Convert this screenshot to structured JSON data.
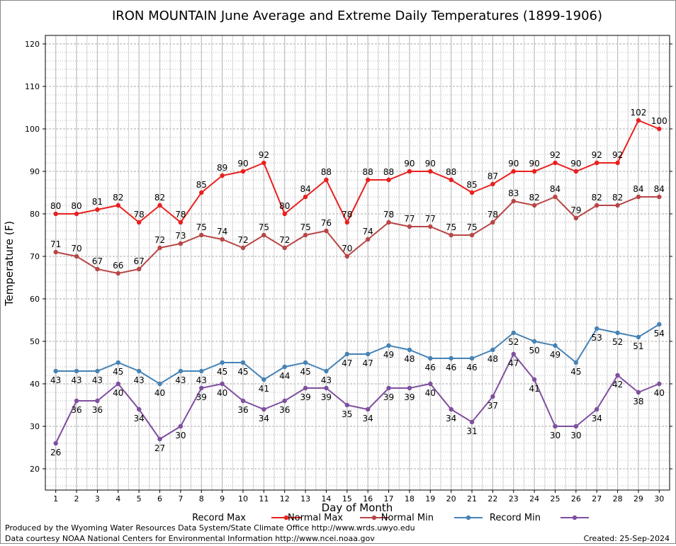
{
  "chart_data": {
    "type": "line",
    "title": "IRON MOUNTAIN June Average and Extreme Daily Temperatures (1899-1906)",
    "xlabel": "Day of Month",
    "ylabel": "Temperature (F)",
    "xlim": [
      0.5,
      30.5
    ],
    "ylim": [
      15,
      122
    ],
    "y_ticks": [
      20,
      30,
      40,
      50,
      60,
      70,
      80,
      90,
      100,
      110,
      120
    ],
    "x": [
      1,
      2,
      3,
      4,
      5,
      6,
      7,
      8,
      9,
      10,
      11,
      12,
      13,
      14,
      15,
      16,
      17,
      18,
      19,
      20,
      21,
      22,
      23,
      24,
      25,
      26,
      27,
      28,
      29,
      30
    ],
    "grid": true,
    "legend": "bottom",
    "series": [
      {
        "name": "Record Max",
        "color": "#e8201e",
        "label_pos": "above",
        "values": [
          80,
          80,
          81,
          82,
          78,
          82,
          78,
          85,
          89,
          90,
          92,
          80,
          84,
          88,
          78,
          88,
          88,
          90,
          90,
          88,
          85,
          87,
          90,
          90,
          92,
          90,
          92,
          92,
          102,
          100
        ]
      },
      {
        "name": "Normal Max",
        "color": "#b84646",
        "label_pos": "above",
        "values": [
          71,
          70,
          67,
          66,
          67,
          72,
          73,
          75,
          74,
          72,
          75,
          72,
          75,
          76,
          70,
          74,
          78,
          77,
          77,
          75,
          75,
          78,
          83,
          82,
          84,
          79,
          82,
          82,
          84,
          84
        ]
      },
      {
        "name": "Normal Min",
        "color": "#4682b4",
        "label_pos": "below",
        "values": [
          43,
          43,
          43,
          45,
          43,
          40,
          43,
          43,
          45,
          45,
          41,
          44,
          45,
          43,
          47,
          47,
          49,
          48,
          46,
          46,
          46,
          48,
          52,
          50,
          49,
          45,
          53,
          52,
          51,
          54
        ]
      },
      {
        "name": "Record Min",
        "color": "#7f4f9f",
        "label_pos": "below",
        "values": [
          26,
          36,
          36,
          40,
          34,
          27,
          30,
          39,
          40,
          36,
          34,
          36,
          39,
          39,
          35,
          34,
          39,
          39,
          40,
          34,
          31,
          37,
          47,
          41,
          30,
          30,
          34,
          42,
          38,
          40
        ]
      }
    ]
  },
  "footer": {
    "produced_by": "Produced by the Wyoming Water Resources Data System/State Climate Office http://www.wrds.uwyo.edu",
    "data_courtesy": "Data courtesy NOAA National Centers for Environmental Information http://www.ncei.noaa.gov",
    "created": "Created: 25-Sep-2024"
  }
}
